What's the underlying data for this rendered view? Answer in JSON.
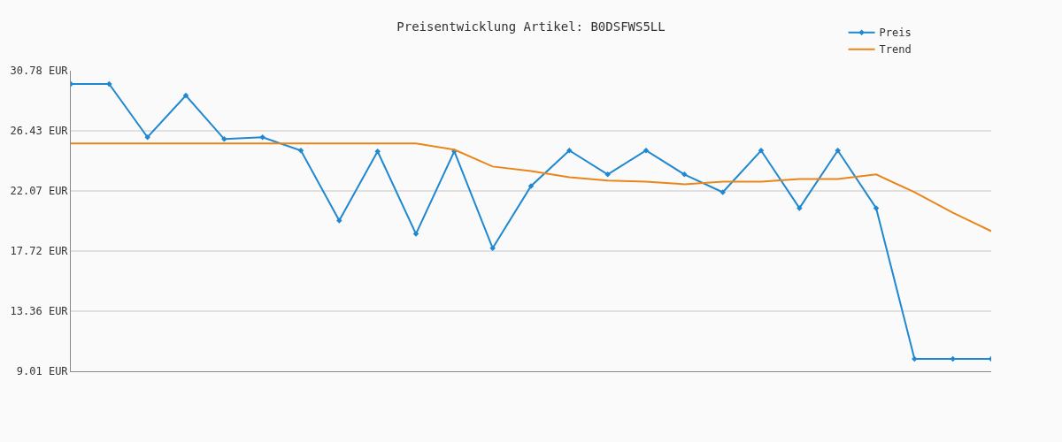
{
  "chart_data": {
    "type": "line",
    "title": "Preisentwicklung Artikel: B0DSFWS5LL",
    "categories": [
      null,
      null,
      null,
      null,
      null,
      null,
      null,
      null,
      null,
      null,
      null,
      null,
      null,
      null,
      null,
      null,
      null,
      null,
      null,
      null,
      null,
      null,
      null,
      null,
      null
    ],
    "series": [
      {
        "name": "Preis",
        "color": "#1f88d0",
        "marker": "diamond",
        "values": [
          29.82,
          29.82,
          25.96,
          28.98,
          25.83,
          25.96,
          25.0,
          19.93,
          24.94,
          18.96,
          24.94,
          17.93,
          22.43,
          25.0,
          23.27,
          25.0,
          23.27,
          21.98,
          25.0,
          20.83,
          25.0,
          20.83,
          9.91,
          9.91,
          9.91
        ]
      },
      {
        "name": "Trend",
        "color": "#e8861a",
        "marker": "none",
        "values": [
          25.51,
          25.51,
          25.51,
          25.51,
          25.51,
          25.51,
          25.51,
          25.51,
          25.51,
          25.51,
          25.06,
          23.84,
          23.52,
          23.07,
          22.82,
          22.75,
          22.56,
          22.75,
          22.75,
          22.94,
          22.94,
          23.27,
          21.98,
          20.5,
          19.16
        ]
      }
    ],
    "ylim": [
      9.01,
      30.78
    ],
    "yticks": [
      {
        "value": 9.01,
        "label": "9.01 EUR"
      },
      {
        "value": 13.36,
        "label": "13.36 EUR"
      },
      {
        "value": 17.72,
        "label": "17.72 EUR"
      },
      {
        "value": 22.07,
        "label": "22.07 EUR"
      },
      {
        "value": 26.43,
        "label": "26.43 EUR"
      },
      {
        "value": 30.78,
        "label": "30.78 EUR"
      }
    ],
    "grid": "y",
    "legend": "top right",
    "line_style": "solid"
  }
}
